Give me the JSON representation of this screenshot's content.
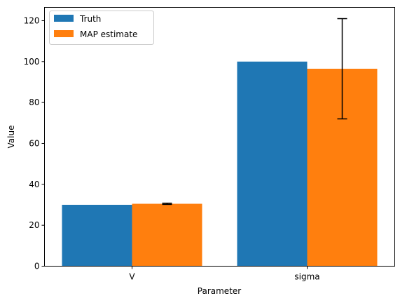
{
  "chart_data": {
    "type": "bar",
    "categories": [
      "V",
      "sigma"
    ],
    "xlabel": "Parameter",
    "ylabel": "Value",
    "ylim": [
      0,
      126.5
    ],
    "yticks": [
      0,
      20,
      40,
      60,
      80,
      100,
      120
    ],
    "grid": false,
    "legend": "top-left",
    "series": [
      {
        "name": "Truth",
        "color": "#1f77b4",
        "values": [
          30,
          100
        ]
      },
      {
        "name": "MAP estimate",
        "color": "#ff7f0e",
        "values": [
          30.5,
          96.5
        ],
        "error_low": [
          30.2,
          72
        ],
        "error_high": [
          30.8,
          121
        ]
      }
    ]
  }
}
